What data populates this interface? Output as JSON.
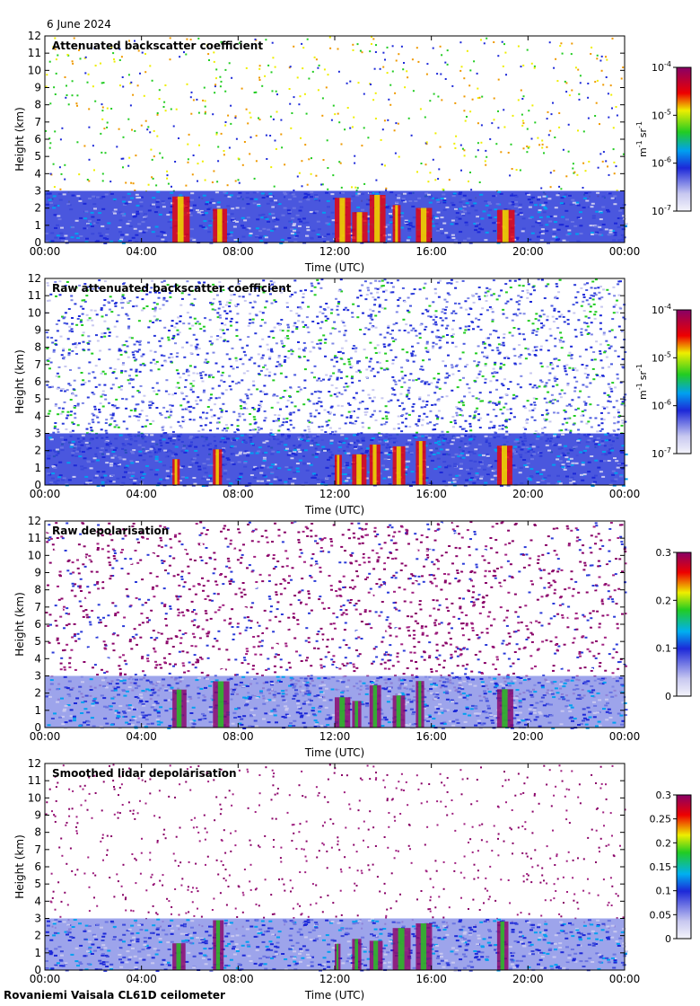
{
  "header": {
    "date": "6 June 2024"
  },
  "footer": {
    "instrument": "Rovaniemi Vaisala CL61D ceilometer"
  },
  "chart_data": [
    {
      "type": "heatmap",
      "title": "Attenuated backscatter coefficient",
      "xlabel": "Time (UTC)",
      "ylabel": "Height (km)",
      "xticks": [
        "00:00",
        "04:00",
        "08:00",
        "12:00",
        "16:00",
        "20:00",
        "00:00"
      ],
      "yticks": [
        0,
        1,
        2,
        3,
        4,
        5,
        6,
        7,
        8,
        9,
        10,
        11,
        12
      ],
      "ylim": [
        0,
        12
      ],
      "colorbar": {
        "scale": "log",
        "ticks": [
          "10",
          "10",
          "10",
          "10"
        ],
        "exponents": [
          "-7",
          "-6",
          "-5",
          "-4"
        ],
        "unit_base": [
          "m",
          "sr"
        ],
        "unit_exponents": [
          "-1",
          "-1"
        ]
      },
      "colors": {
        "low": "#e4e4f6",
        "blue": "#1c28d8",
        "green": "#22cc22",
        "yellow": "#eeee00",
        "red": "#ee0000",
        "purple": "#880066"
      }
    },
    {
      "type": "heatmap",
      "title": "Raw attenuated backscatter coefficient",
      "xlabel": "Time (UTC)",
      "ylabel": "Height (km)",
      "xticks": [
        "00:00",
        "04:00",
        "08:00",
        "12:00",
        "16:00",
        "20:00",
        "00:00"
      ],
      "yticks": [
        0,
        1,
        2,
        3,
        4,
        5,
        6,
        7,
        8,
        9,
        10,
        11,
        12
      ],
      "ylim": [
        0,
        12
      ],
      "colorbar": {
        "scale": "log",
        "ticks": [
          "10",
          "10",
          "10",
          "10"
        ],
        "exponents": [
          "-7",
          "-6",
          "-5",
          "-4"
        ],
        "unit_base": [
          "m",
          "sr"
        ],
        "unit_exponents": [
          "-1",
          "-1"
        ]
      }
    },
    {
      "type": "heatmap",
      "title": "Raw depolarisation",
      "xlabel": "Time (UTC)",
      "ylabel": "Height (km)",
      "xticks": [
        "00:00",
        "04:00",
        "08:00",
        "12:00",
        "16:00",
        "20:00",
        "00:00"
      ],
      "yticks": [
        0,
        1,
        2,
        3,
        4,
        5,
        6,
        7,
        8,
        9,
        10,
        11,
        12
      ],
      "ylim": [
        0,
        12
      ],
      "colorbar": {
        "scale": "linear",
        "ticks": [
          "0",
          "0.1",
          "0.2",
          "0.3"
        ]
      }
    },
    {
      "type": "heatmap",
      "title": "Smoothed lidar depolarisation",
      "xlabel": "Time (UTC)",
      "ylabel": "Height (km)",
      "xticks": [
        "00:00",
        "04:00",
        "08:00",
        "12:00",
        "16:00",
        "20:00",
        "00:00"
      ],
      "yticks": [
        0,
        1,
        2,
        3,
        4,
        5,
        6,
        7,
        8,
        9,
        10,
        11,
        12
      ],
      "ylim": [
        0,
        12
      ],
      "colorbar": {
        "scale": "linear",
        "ticks": [
          "0",
          "0.05",
          "0.1",
          "0.15",
          "0.2",
          "0.25",
          "0.3"
        ]
      }
    }
  ]
}
